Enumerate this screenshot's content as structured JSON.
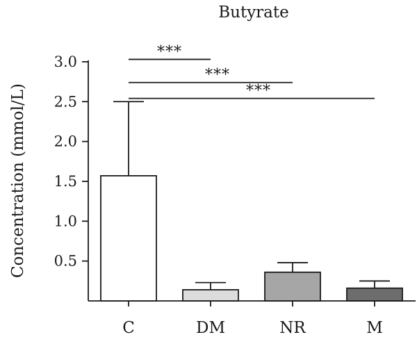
{
  "chart_data": {
    "type": "bar",
    "title": "Butyrate",
    "ylabel": "Concentration (mmol/L)",
    "xlabel": "",
    "categories": [
      "C",
      "DM",
      "NR",
      "M"
    ],
    "values": [
      1.57,
      0.14,
      0.36,
      0.16
    ],
    "errors": [
      0.93,
      0.09,
      0.12,
      0.09
    ],
    "bar_colors": [
      "#ffffff",
      "#dcdcdc",
      "#a6a6a6",
      "#6d6d6d"
    ],
    "ylim": [
      0,
      3.0
    ],
    "yticks": [
      0.5,
      1.0,
      1.5,
      2.0,
      2.5,
      3.0
    ],
    "ytick_labels": [
      "0.5",
      "1.0",
      "1.5",
      "2.0",
      "2.5",
      "3.0"
    ],
    "grid": false,
    "significance": [
      {
        "from": "C",
        "to": "DM",
        "label": "***",
        "y": 3.03
      },
      {
        "from": "C",
        "to": "NR",
        "label": "***",
        "y": 2.74
      },
      {
        "from": "C",
        "to": "M",
        "label": "***",
        "y": 2.54
      }
    ]
  }
}
